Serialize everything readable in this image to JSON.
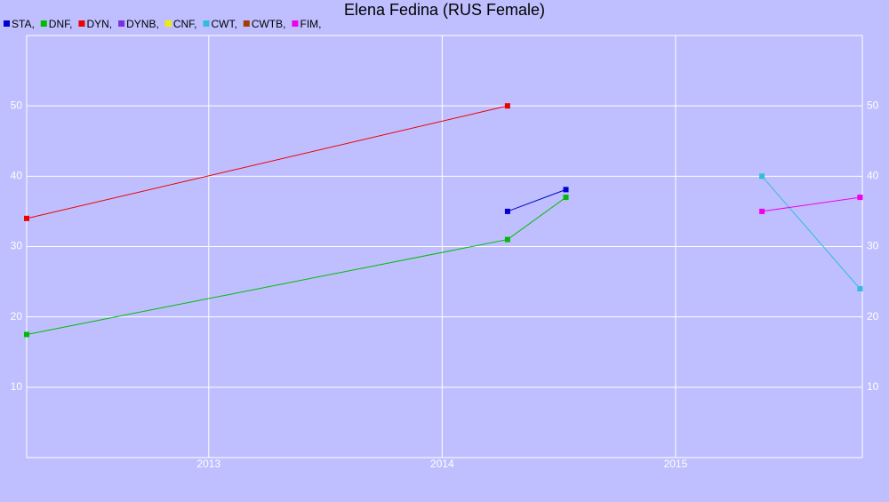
{
  "chart_data": {
    "type": "line",
    "title": "Elena Fedina (RUS Female)",
    "xlim": [
      2012.22,
      2015.8
    ],
    "xticks": [
      2013,
      2014,
      2015
    ],
    "ylim": [
      0,
      60
    ],
    "yticks": [
      10,
      20,
      30,
      40,
      50
    ],
    "grid": true,
    "series": [
      {
        "name": "STA,",
        "color": "#0000cc",
        "x": [
          2014.28,
          2014.53
        ],
        "values": [
          35,
          38.1
        ]
      },
      {
        "name": "DNF,",
        "color": "#00bb00",
        "x": [
          2012.22,
          2014.28,
          2014.53
        ],
        "values": [
          17.5,
          31,
          37
        ]
      },
      {
        "name": "DYN,",
        "color": "#ee0000",
        "x": [
          2012.22,
          2014.28
        ],
        "values": [
          34,
          50
        ]
      },
      {
        "name": "DYNB,",
        "color": "#7a2fe0",
        "x": [],
        "values": []
      },
      {
        "name": "CNF,",
        "color": "#eeee00",
        "x": [],
        "values": []
      },
      {
        "name": "CWT,",
        "color": "#33bbdd",
        "x": [
          2015.37,
          2015.79
        ],
        "values": [
          40,
          24
        ]
      },
      {
        "name": "CWTB,",
        "color": "#a04000",
        "x": [],
        "values": []
      },
      {
        "name": "FIM,",
        "color": "#ee00ee",
        "x": [
          2015.37,
          2015.79
        ],
        "values": [
          35,
          37
        ]
      }
    ]
  }
}
